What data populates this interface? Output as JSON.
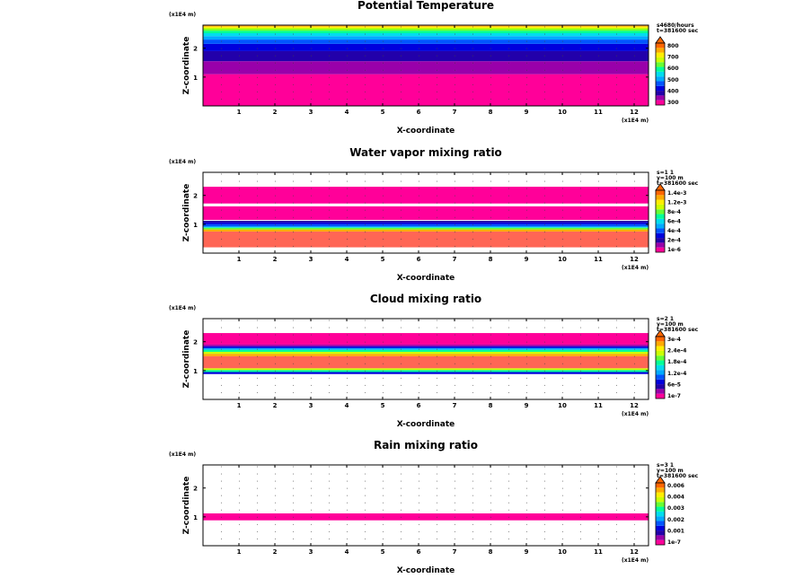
{
  "figure": {
    "panels": [
      {
        "title": "Potential Temperature",
        "x_unit": "(x1E4 m)",
        "z_unit": "(x1E4 m)",
        "xlabel": "X-coordinate",
        "ylabel": "Z-coordinate",
        "info": [
          "s4680/hours",
          "t=381600 sec"
        ],
        "colorbar": {
          "labels": [
            "800",
            "700",
            "600",
            "500",
            "400",
            "300"
          ],
          "colors": [
            "#ff0099",
            "#9900aa",
            "#2200aa",
            "#0000dd",
            "#0055ff",
            "#00aaff",
            "#00ddee",
            "#00ff99",
            "#66ff33",
            "#ccff00",
            "#ffee00",
            "#ffaa00",
            "#ff6600"
          ]
        }
      },
      {
        "title": "Water vapor mixing ratio",
        "x_unit": "(x1E4 m)",
        "z_unit": "(x1E4 m)",
        "xlabel": "X-coordinate",
        "ylabel": "Z-coordinate",
        "info": [
          "s=1 1",
          "y=100 m",
          "t=381600 sec"
        ],
        "colorbar": {
          "labels": [
            "1.4e-3",
            "1.2e-3",
            "8e-4",
            "6e-4",
            "4e-4",
            "2e-4",
            "1e-6"
          ],
          "colors": [
            "#ff0099",
            "#9900aa",
            "#2200aa",
            "#0000dd",
            "#0055ff",
            "#00aaff",
            "#00ddee",
            "#00ff99",
            "#66ff33",
            "#ccff00",
            "#ffee00",
            "#ffaa00",
            "#ff6600"
          ]
        }
      },
      {
        "title": "Cloud mixing ratio",
        "x_unit": "(x1E4 m)",
        "z_unit": "(x1E4 m)",
        "xlabel": "X-coordinate",
        "ylabel": "Z-coordinate",
        "info": [
          "s=2 1",
          "y=100 m",
          "t=381600 sec"
        ],
        "colorbar": {
          "labels": [
            "3e-4",
            "2.4e-4",
            "1.8e-4",
            "1.2e-4",
            "6e-5",
            "1e-7"
          ],
          "colors": [
            "#ff0099",
            "#9900aa",
            "#2200aa",
            "#0000dd",
            "#0055ff",
            "#00aaff",
            "#00ddee",
            "#00ff99",
            "#66ff33",
            "#ccff00",
            "#ffee00",
            "#ffaa00",
            "#ff6600"
          ]
        }
      },
      {
        "title": "Rain mixing ratio",
        "x_unit": "(x1E4 m)",
        "z_unit": "(x1E4 m)",
        "xlabel": "X-coordinate",
        "ylabel": "Z-coordinate",
        "info": [
          "s=3 1",
          "y=100 m",
          "t=381600 sec"
        ],
        "colorbar": {
          "labels": [
            "0.006",
            "0.004",
            "0.003",
            "0.002",
            "0.001",
            "1e-7"
          ],
          "colors": [
            "#ff0099",
            "#9900aa",
            "#2200aa",
            "#0000dd",
            "#0055ff",
            "#00aaff",
            "#00ddee",
            "#00ff99",
            "#66ff33",
            "#ccff00",
            "#ffee00",
            "#ffaa00",
            "#ff6600"
          ]
        }
      }
    ]
  },
  "chart_data": [
    {
      "type": "heatmap",
      "title": "Potential Temperature",
      "xlabel": "X-coordinate",
      "ylabel": "Z-coordinate",
      "xlim": [
        0,
        12.4
      ],
      "ylim": [
        0,
        2.8
      ],
      "x_ticks": [
        "1",
        "2",
        "3",
        "4",
        "5",
        "6",
        "7",
        "8",
        "9",
        "10",
        "11",
        "12"
      ],
      "y_ticks": [
        "1",
        "2"
      ],
      "bands": [
        {
          "z": [
            0,
            1.1
          ],
          "color": "#ff0099"
        },
        {
          "z": [
            1.1,
            1.55
          ],
          "color": "#9900aa"
        },
        {
          "z": [
            1.55,
            1.9
          ],
          "color": "#2200aa"
        },
        {
          "z": [
            1.9,
            2.15
          ],
          "color": "#0000dd"
        },
        {
          "z": [
            2.15,
            2.3
          ],
          "color": "#0055ff"
        },
        {
          "z": [
            2.3,
            2.42
          ],
          "color": "#00aaff"
        },
        {
          "z": [
            2.42,
            2.52
          ],
          "color": "#00ddee"
        },
        {
          "z": [
            2.52,
            2.6
          ],
          "color": "#00ff99"
        },
        {
          "z": [
            2.6,
            2.66
          ],
          "color": "#66ff33"
        },
        {
          "z": [
            2.66,
            2.71
          ],
          "color": "#ccff00"
        },
        {
          "z": [
            2.71,
            2.75
          ],
          "color": "#ffee00"
        },
        {
          "z": [
            2.75,
            2.78
          ],
          "color": "#ffaa00"
        },
        {
          "z": [
            2.78,
            2.8
          ],
          "color": "#ff6600"
        }
      ]
    },
    {
      "type": "heatmap",
      "title": "Water vapor mixing ratio",
      "xlabel": "X-coordinate",
      "ylabel": "Z-coordinate",
      "xlim": [
        0,
        12.4
      ],
      "ylim": [
        0,
        2.8
      ],
      "x_ticks": [
        "1",
        "2",
        "3",
        "4",
        "5",
        "6",
        "7",
        "8",
        "9",
        "10",
        "11",
        "12"
      ],
      "y_ticks": [
        "1",
        "2"
      ],
      "bands": [
        {
          "z": [
            0.2,
            0.75
          ],
          "color": "#ff6655"
        },
        {
          "z": [
            0.75,
            0.82
          ],
          "color": "#ffaa00"
        },
        {
          "z": [
            0.82,
            0.88
          ],
          "color": "#66ff33"
        },
        {
          "z": [
            0.88,
            0.92
          ],
          "color": "#00ddee"
        },
        {
          "z": [
            0.92,
            1.0
          ],
          "color": "#0055ff"
        },
        {
          "z": [
            1.0,
            1.06
          ],
          "color": "#0000dd"
        },
        {
          "z": [
            1.06,
            1.12
          ],
          "color": "#2200aa"
        },
        {
          "z": [
            1.15,
            1.62
          ],
          "color": "#ff0099"
        },
        {
          "z": [
            1.72,
            2.3
          ],
          "color": "#ff0099"
        }
      ]
    },
    {
      "type": "heatmap",
      "title": "Cloud mixing ratio",
      "xlabel": "X-coordinate",
      "ylabel": "Z-coordinate",
      "xlim": [
        0,
        12.4
      ],
      "ylim": [
        0,
        2.8
      ],
      "x_ticks": [
        "1",
        "2",
        "3",
        "4",
        "5",
        "6",
        "7",
        "8",
        "9",
        "10",
        "11",
        "12"
      ],
      "y_ticks": [
        "1",
        "2"
      ],
      "bands": [
        {
          "z": [
            0.88,
            0.95
          ],
          "color": "#0000dd"
        },
        {
          "z": [
            0.95,
            1.02
          ],
          "color": "#00ff99"
        },
        {
          "z": [
            1.02,
            1.08
          ],
          "color": "#ccff00"
        },
        {
          "z": [
            1.08,
            1.5
          ],
          "color": "#ff6655"
        },
        {
          "z": [
            1.5,
            1.58
          ],
          "color": "#ffaa00"
        },
        {
          "z": [
            1.58,
            1.65
          ],
          "color": "#ccff00"
        },
        {
          "z": [
            1.65,
            1.72
          ],
          "color": "#00ff99"
        },
        {
          "z": [
            1.72,
            1.78
          ],
          "color": "#00aaff"
        },
        {
          "z": [
            1.78,
            1.84
          ],
          "color": "#0000dd"
        },
        {
          "z": [
            1.84,
            1.9
          ],
          "color": "#9900aa"
        },
        {
          "z": [
            1.9,
            2.3
          ],
          "color": "#ff0099"
        }
      ]
    },
    {
      "type": "heatmap",
      "title": "Rain mixing ratio",
      "xlabel": "X-coordinate",
      "ylabel": "Z-coordinate",
      "xlim": [
        0,
        12.4
      ],
      "ylim": [
        0,
        2.8
      ],
      "x_ticks": [
        "1",
        "2",
        "3",
        "4",
        "5",
        "6",
        "7",
        "8",
        "9",
        "10",
        "11",
        "12"
      ],
      "y_ticks": [
        "1",
        "2"
      ],
      "bands": [
        {
          "z": [
            0.88,
            1.12
          ],
          "color": "#ff0099"
        }
      ]
    }
  ]
}
